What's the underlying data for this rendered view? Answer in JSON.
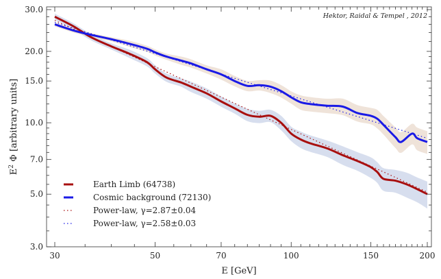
{
  "chart_data": {
    "type": "line",
    "xlabel": "E [GeV]",
    "ylabel_sup": "2",
    "ylabel_pre": "E",
    "ylabel_post": " Φ [arbitrary units]",
    "x_scale": "log",
    "y_scale": "log",
    "xlim": [
      30,
      200
    ],
    "ylim": [
      3.0,
      30.0
    ],
    "x_ticks": [
      30,
      50,
      70,
      100,
      150,
      200
    ],
    "x_tick_labels": [
      "30",
      "50",
      "70",
      "100",
      "150",
      "200"
    ],
    "y_ticks": [
      3.0,
      5.0,
      7.0,
      10.0,
      15.0,
      20.0,
      30.0
    ],
    "y_tick_labels": [
      "3.0",
      "5.0",
      "7.0",
      "10.0",
      "15.0",
      "20.0",
      "30.0"
    ],
    "annotation": "Hektor, Raidal & Tempel , 2012",
    "legend_position": "lower-left",
    "colors": {
      "earth": "#a80f0f",
      "cosmic": "#1a1ae6",
      "earth_band": "#c9d3e8",
      "cosmic_band": "#e9d9cc"
    },
    "series": [
      {
        "name": "Earth Limb (64738)",
        "style": "solid",
        "x": [
          30,
          33,
          36,
          40,
          44,
          48,
          50,
          53,
          57,
          60,
          65,
          70,
          75,
          80,
          85,
          90,
          95,
          100,
          105,
          110,
          120,
          130,
          140,
          150,
          155,
          160,
          170,
          180,
          190,
          200
        ],
        "y": [
          28.0,
          25.5,
          23.0,
          21.0,
          19.5,
          18.0,
          16.8,
          15.5,
          14.8,
          14.2,
          13.3,
          12.3,
          11.5,
          10.8,
          10.6,
          10.7,
          10.0,
          9.0,
          8.5,
          8.2,
          7.8,
          7.3,
          6.9,
          6.5,
          6.2,
          5.8,
          5.7,
          5.5,
          5.25,
          5.0
        ],
        "band": [
          0.03,
          0.03,
          0.03,
          0.03,
          0.04,
          0.04,
          0.04,
          0.04,
          0.04,
          0.05,
          0.05,
          0.05,
          0.05,
          0.06,
          0.06,
          0.06,
          0.07,
          0.07,
          0.08,
          0.08,
          0.08,
          0.09,
          0.09,
          0.1,
          0.1,
          0.11,
          0.11,
          0.12,
          0.12,
          0.13
        ]
      },
      {
        "name": "Cosmic background (72130)",
        "style": "solid",
        "x": [
          30,
          33,
          36,
          40,
          44,
          48,
          50,
          53,
          57,
          60,
          65,
          70,
          75,
          80,
          85,
          90,
          95,
          100,
          105,
          110,
          120,
          130,
          140,
          150,
          155,
          160,
          170,
          175,
          185,
          190,
          200
        ],
        "y": [
          26.0,
          24.5,
          23.5,
          22.5,
          21.5,
          20.5,
          19.8,
          19.0,
          18.3,
          17.8,
          16.8,
          16.0,
          15.0,
          14.3,
          14.4,
          14.2,
          13.6,
          12.8,
          12.2,
          12.0,
          11.8,
          11.7,
          11.0,
          10.7,
          10.4,
          9.8,
          8.7,
          8.3,
          9.0,
          8.6,
          8.3
        ],
        "band": [
          0.02,
          0.02,
          0.02,
          0.02,
          0.03,
          0.03,
          0.03,
          0.03,
          0.04,
          0.04,
          0.04,
          0.05,
          0.05,
          0.05,
          0.05,
          0.06,
          0.06,
          0.06,
          0.07,
          0.07,
          0.07,
          0.08,
          0.08,
          0.08,
          0.09,
          0.09,
          0.1,
          0.1,
          0.1,
          0.11,
          0.11
        ]
      },
      {
        "name": "Power-law, γ=2.87±0.04",
        "style": "dotted",
        "x": [
          30,
          200
        ],
        "y": [
          27.0,
          5.1
        ]
      },
      {
        "name": "Power-law, γ=2.58±0.03",
        "style": "dotted",
        "x": [
          30,
          200
        ],
        "y": [
          26.5,
          8.6
        ]
      }
    ]
  }
}
